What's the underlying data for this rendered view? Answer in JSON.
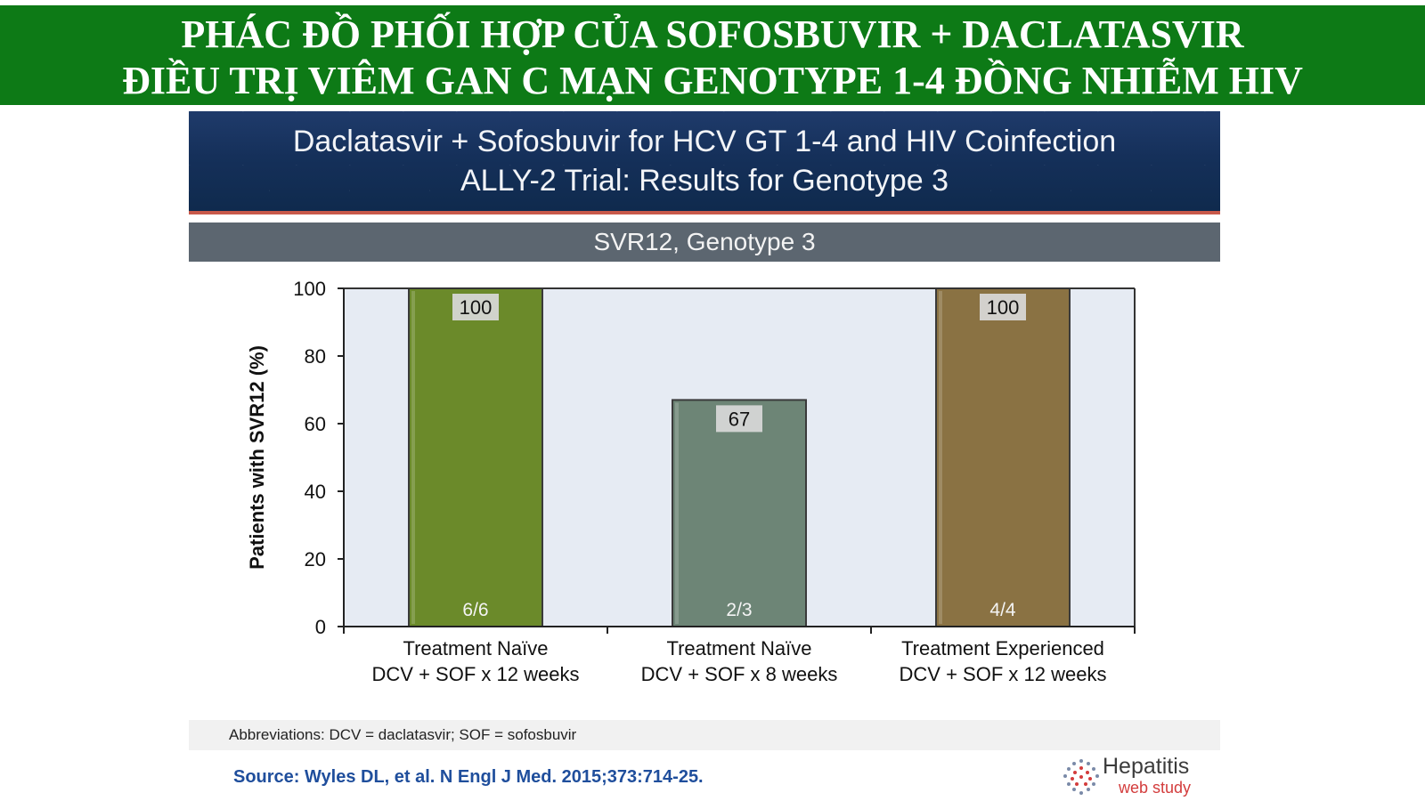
{
  "banner": {
    "line1": "PHÁC ĐỒ PHỐI HỢP CỦA SOFOSBUVIR + DACLATASVIR",
    "line2": "ĐIỀU TRỊ VIÊM GAN C MẠN GENOTYPE 1-4 ĐỒNG NHIỄM HIV"
  },
  "slide": {
    "title_line1": "Daclatasvir + Sofosbuvir for HCV GT 1-4 and HIV Coinfection",
    "title_line2": "ALLY-2 Trial: Results for Genotype 3",
    "subhead": "SVR12, Genotype 3",
    "abbreviations": "Abbreviations: DCV = daclatasvir; SOF = sofosbuvir",
    "source": "Source: Wyles DL, et al. N Engl J Med. 2015;373:714-25.",
    "logo_line1": "Hepatitis",
    "logo_line2": "web study"
  },
  "chart_data": {
    "type": "bar",
    "ylabel": "Patients with SVR12 (%)",
    "ylim": [
      0,
      100
    ],
    "yticks": [
      0,
      20,
      40,
      60,
      80,
      100
    ],
    "grid": false,
    "categories": [
      [
        "Treatment Naïve",
        "DCV + SOF x 12 weeks"
      ],
      [
        "Treatment Naïve",
        "DCV + SOF x 8 weeks"
      ],
      [
        "Treatment Experienced",
        "DCV + SOF x 12 weeks"
      ]
    ],
    "values": [
      100,
      67,
      100
    ],
    "value_labels": [
      "100",
      "67",
      "100"
    ],
    "bar_labels": [
      "6/6",
      "2/3",
      "4/4"
    ],
    "colors": [
      "#6b8a2a",
      "#6d8576",
      "#8a7243"
    ],
    "plot_background": "#e6ebf3"
  }
}
